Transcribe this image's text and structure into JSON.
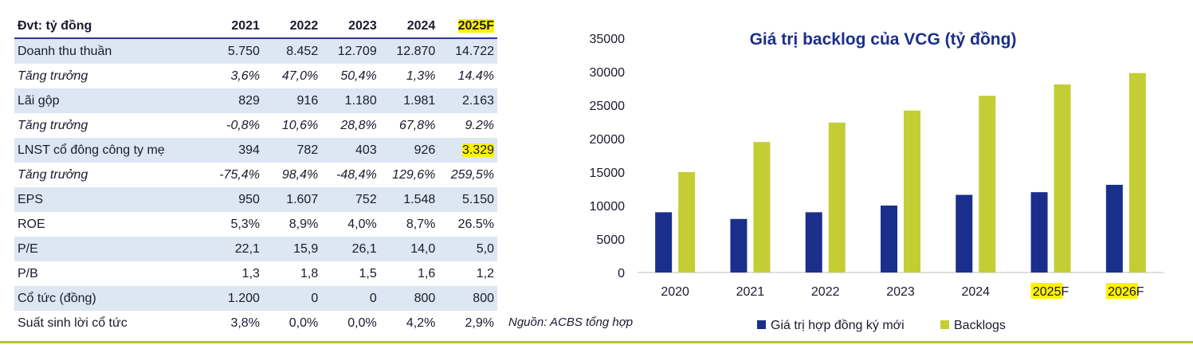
{
  "table": {
    "headers": [
      "Đvt: tỷ đồng",
      "2021",
      "2022",
      "2023",
      "2024",
      "2025F"
    ],
    "rows": [
      {
        "label": "Doanh thu thuần",
        "values": [
          "5.750",
          "8.452",
          "12.709",
          "12.870",
          "14.722"
        ],
        "italic": false,
        "shade": true
      },
      {
        "label": "Tăng trưởng",
        "values": [
          "3,6%",
          "47,0%",
          "50,4%",
          "1,3%",
          "14.4%"
        ],
        "italic": true,
        "shade": false
      },
      {
        "label": "Lãi gộp",
        "values": [
          "829",
          "916",
          "1.180",
          "1.981",
          "2.163"
        ],
        "italic": false,
        "shade": true
      },
      {
        "label": "Tăng trưởng",
        "values": [
          "-0,8%",
          "10,6%",
          "28,8%",
          "67,8%",
          "9.2%"
        ],
        "italic": true,
        "shade": false
      },
      {
        "label": "LNST cổ đông công ty mẹ",
        "values": [
          "394",
          "782",
          "403",
          "926",
          "3.329"
        ],
        "italic": false,
        "shade": true
      },
      {
        "label": "Tăng trưởng",
        "values": [
          "-75,4%",
          "98,4%",
          "-48,4%",
          "129,6%",
          "259,5%"
        ],
        "italic": true,
        "shade": false
      },
      {
        "label": "EPS",
        "values": [
          "950",
          "1.607",
          "752",
          "1.548",
          "5.150"
        ],
        "italic": false,
        "shade": true
      },
      {
        "label": "ROE",
        "values": [
          "5,3%",
          "8,9%",
          "4,0%",
          "8,7%",
          "26.5%"
        ],
        "italic": false,
        "shade": false
      },
      {
        "label": "P/E",
        "values": [
          "22,1",
          "15,9",
          "26,1",
          "14,0",
          "5,0"
        ],
        "italic": false,
        "shade": true
      },
      {
        "label": "P/B",
        "values": [
          "1,3",
          "1,8",
          "1,5",
          "1,6",
          "1,2"
        ],
        "italic": false,
        "shade": false
      },
      {
        "label": "Cổ tức (đồng)",
        "values": [
          "1.200",
          "0",
          "0",
          "800",
          "800"
        ],
        "italic": false,
        "shade": true
      },
      {
        "label": "Suất sinh lời cổ tức",
        "values": [
          "3,8%",
          "0,0%",
          "0,0%",
          "4,2%",
          "2,9%"
        ],
        "italic": false,
        "shade": false
      }
    ]
  },
  "source": "Nguồn: ACBS tổng hợp",
  "colors": {
    "highlight": "#fff200",
    "series1": "#1a2f8c",
    "series2": "#c3ce35",
    "shade": "#dde6f3",
    "rule": "#b5c334"
  },
  "chart_data": {
    "type": "bar",
    "title": "Giá trị backlog của VCG (tỷ đồng)",
    "categories": [
      "2020",
      "2021",
      "2022",
      "2023",
      "2024",
      "2025F",
      "2026F"
    ],
    "series": [
      {
        "name": "Giá trị hợp đồng ký mới",
        "values": [
          9000,
          8000,
          9000,
          10000,
          11600,
          12000,
          13100
        ]
      },
      {
        "name": "Backlogs",
        "values": [
          15000,
          19500,
          22400,
          24200,
          26400,
          28100,
          29800
        ]
      }
    ],
    "ylim": [
      0,
      35000
    ],
    "yticks": [
      0,
      5000,
      10000,
      15000,
      20000,
      25000,
      30000,
      35000
    ],
    "grid": false,
    "legend": "bottom"
  }
}
